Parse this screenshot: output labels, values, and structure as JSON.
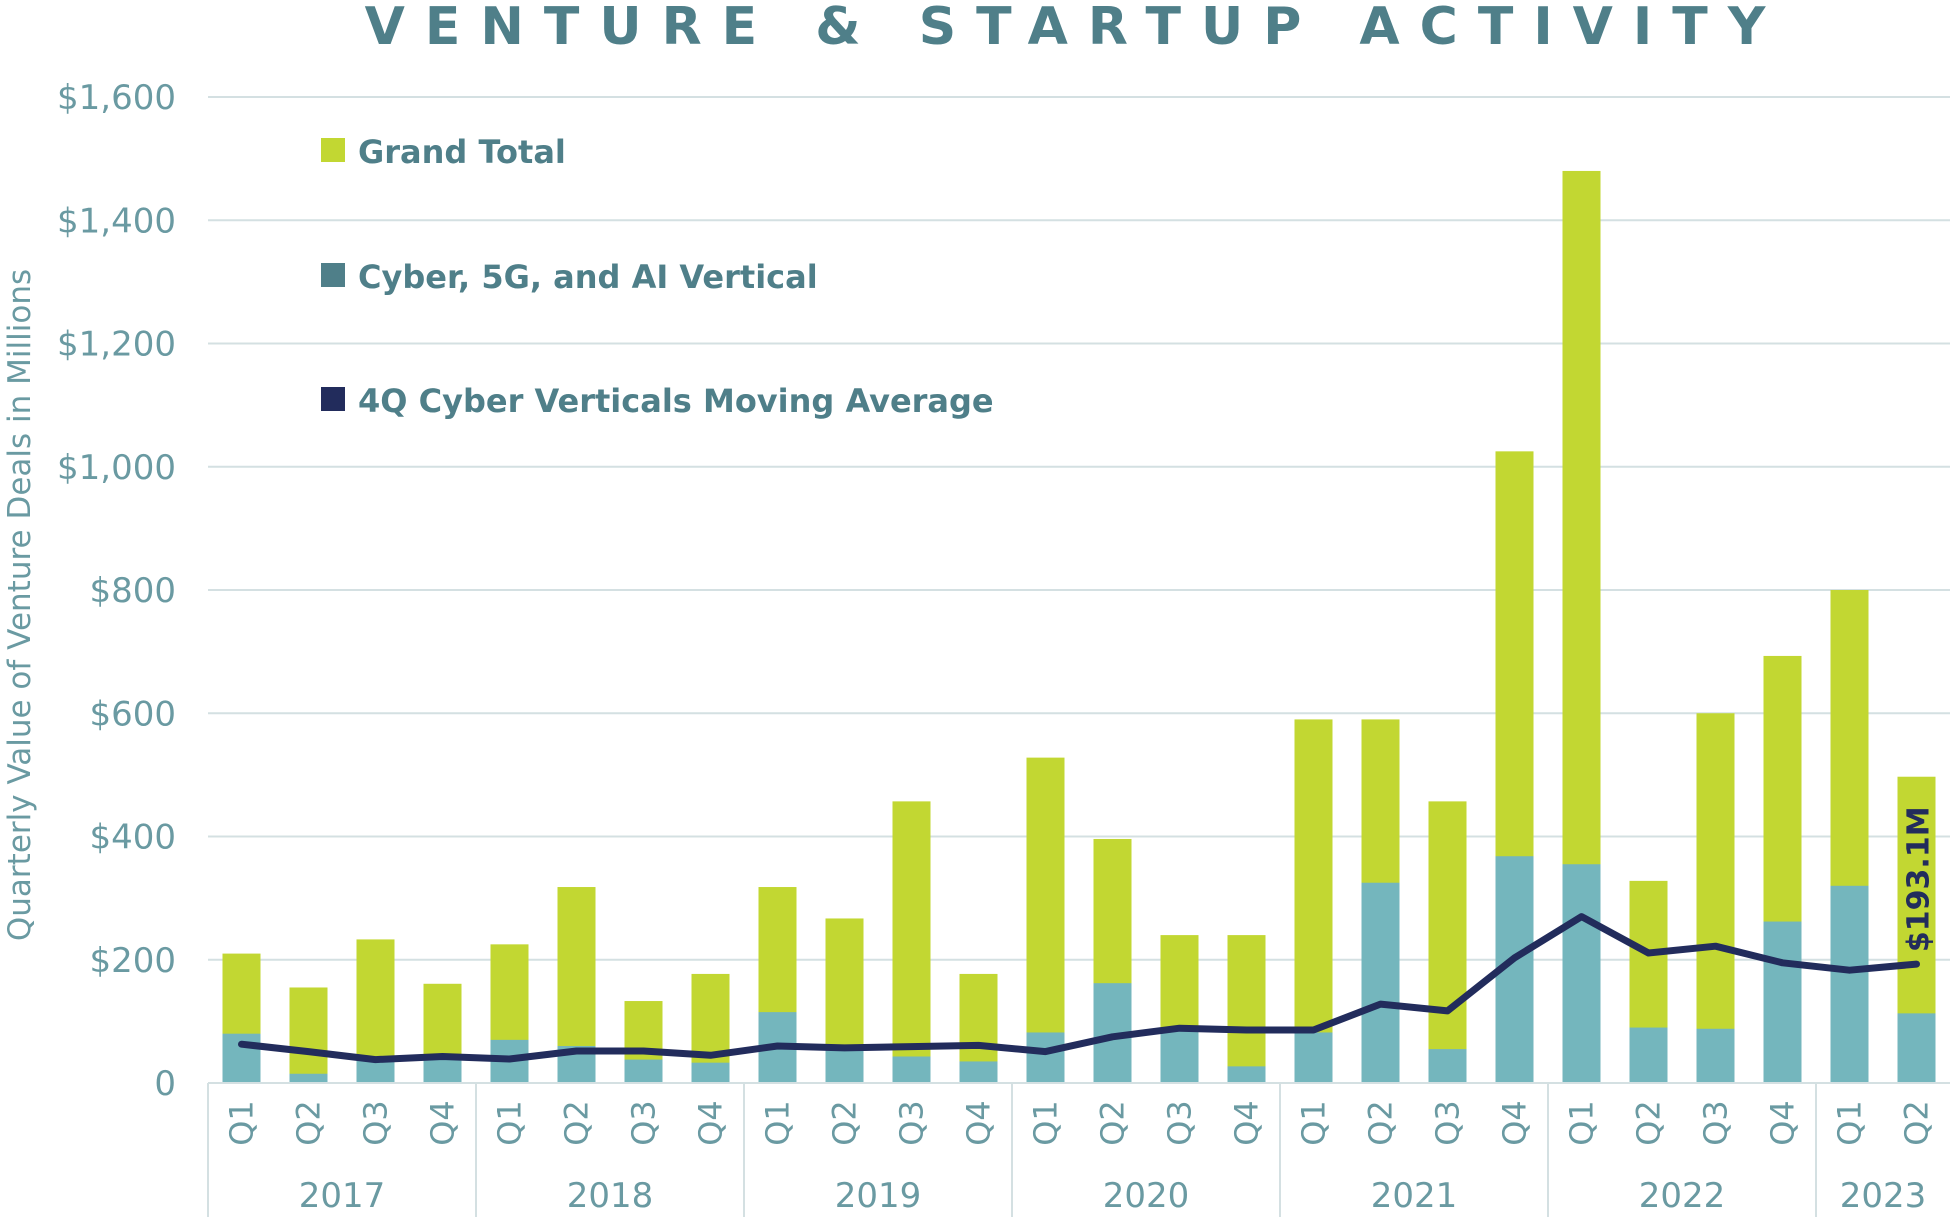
{
  "chart_data": {
    "type": "bar",
    "title": "VENTURE & STARTUP ACTIVITY",
    "ylabel": "Quarterly Value of Venture Deals in Millions",
    "ylim": [
      0,
      1600
    ],
    "yticks": [
      {
        "value": 0,
        "label": "0"
      },
      {
        "value": 200,
        "label": "$200"
      },
      {
        "value": 400,
        "label": "$400"
      },
      {
        "value": 600,
        "label": "$600"
      },
      {
        "value": 800,
        "label": "$800"
      },
      {
        "value": 1000,
        "label": "$1,000"
      },
      {
        "value": 1200,
        "label": "$1,200"
      },
      {
        "value": 1400,
        "label": "$1,400"
      },
      {
        "value": 1600,
        "label": "$1,600"
      }
    ],
    "grid": true,
    "legend_position": "top-left",
    "categories": [
      "Q1",
      "Q2",
      "Q3",
      "Q4",
      "Q1",
      "Q2",
      "Q3",
      "Q4",
      "Q1",
      "Q2",
      "Q3",
      "Q4",
      "Q1",
      "Q2",
      "Q3",
      "Q4",
      "Q1",
      "Q2",
      "Q3",
      "Q4",
      "Q1",
      "Q2",
      "Q3",
      "Q4",
      "Q1",
      "Q2"
    ],
    "year_groups": [
      {
        "label": "2017",
        "count": 4
      },
      {
        "label": "2018",
        "count": 4
      },
      {
        "label": "2019",
        "count": 4
      },
      {
        "label": "2020",
        "count": 4
      },
      {
        "label": "2021",
        "count": 4
      },
      {
        "label": "2022",
        "count": 4
      },
      {
        "label": "2023",
        "count": 2
      }
    ],
    "series": [
      {
        "name": "Grand Total",
        "kind": "bar",
        "color": "#c2d732",
        "values": [
          210,
          155,
          233,
          161,
          225,
          318,
          133,
          177,
          318,
          267,
          457,
          177,
          528,
          396,
          240,
          240,
          590,
          590,
          457,
          1025,
          1480,
          328,
          600,
          693,
          800,
          497
        ]
      },
      {
        "name": "Cyber, 5G, and AI Vertical",
        "kind": "bar",
        "color": "#74b6bd",
        "legend_color": "#4f7f89",
        "values": [
          80,
          15,
          40,
          40,
          70,
          60,
          38,
          33,
          115,
          55,
          43,
          35,
          82,
          162,
          87,
          27,
          82,
          325,
          55,
          368,
          355,
          90,
          88,
          262,
          320,
          113
        ]
      },
      {
        "name": "4Q Cyber Verticals Moving Average",
        "kind": "line",
        "color": "#222c5c",
        "values": [
          63,
          51,
          38,
          43,
          39,
          52,
          52,
          45,
          60,
          57,
          59,
          61,
          51,
          75,
          89,
          86,
          86,
          128,
          117,
          203,
          270,
          211,
          222,
          195,
          183,
          193
        ]
      }
    ],
    "annotation": {
      "text": "$193.1M",
      "series": "4Q Cyber Verticals Moving Average",
      "index": 25
    }
  },
  "colors": {
    "title": "#4f7f89",
    "axis_text": "#6a9aa2",
    "grid": "#d4e0e2",
    "label": "#4f7f89"
  }
}
